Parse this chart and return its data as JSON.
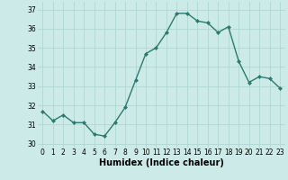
{
  "x": [
    0,
    1,
    2,
    3,
    4,
    5,
    6,
    7,
    8,
    9,
    10,
    11,
    12,
    13,
    14,
    15,
    16,
    17,
    18,
    19,
    20,
    21,
    22,
    23
  ],
  "y": [
    31.7,
    31.2,
    31.5,
    31.1,
    31.1,
    30.5,
    30.4,
    31.1,
    31.9,
    33.3,
    34.7,
    35.0,
    35.8,
    36.8,
    36.8,
    36.4,
    36.3,
    35.8,
    36.1,
    34.3,
    33.2,
    33.5,
    33.4,
    32.9
  ],
  "line_color": "#2d7a6e",
  "marker": "D",
  "marker_size": 2.0,
  "bg_color": "#cceae8",
  "grid_color": "#b0d8d4",
  "xlabel": "Humidex (Indice chaleur)",
  "ylim": [
    29.8,
    37.4
  ],
  "xlim": [
    -0.5,
    23.5
  ],
  "yticks": [
    30,
    31,
    32,
    33,
    34,
    35,
    36,
    37
  ],
  "xticks": [
    0,
    1,
    2,
    3,
    4,
    5,
    6,
    7,
    8,
    9,
    10,
    11,
    12,
    13,
    14,
    15,
    16,
    17,
    18,
    19,
    20,
    21,
    22,
    23
  ],
  "tick_fontsize": 5.5,
  "xlabel_fontsize": 7.0,
  "line_width": 1.0
}
